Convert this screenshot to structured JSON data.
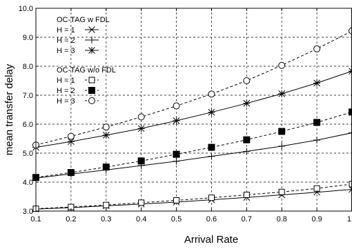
{
  "chart_data": {
    "type": "line",
    "xlabel": "Arrival Rate",
    "ylabel": "mean transfer delay",
    "xlim": [
      0.1,
      1
    ],
    "ylim": [
      3.0,
      10.0
    ],
    "x_ticks": [
      "0.1",
      "0.2",
      "0.3",
      "0.4",
      "0.5",
      "0.6",
      "0.7",
      "0.8",
      "0.9",
      "1"
    ],
    "y_ticks": [
      "3.0",
      "4.0",
      "5.0",
      "6.0",
      "7.0",
      "8.0",
      "9.0",
      "10.0"
    ],
    "grid": true,
    "legend_placement": "top-left",
    "x": [
      0.1,
      0.2,
      0.3,
      0.4,
      0.5,
      0.6,
      0.7,
      0.8,
      0.9,
      1.0
    ],
    "legend_groups": [
      {
        "title": "OC-TAG w FDL",
        "series": [
          {
            "name": "H = 1",
            "marker": "x",
            "dash": false,
            "values": [
              3.07,
              3.12,
              3.18,
              3.24,
              3.31,
              3.39,
              3.47,
              3.56,
              3.65,
              3.75
            ]
          },
          {
            "name": "H = 2",
            "marker": "plus",
            "dash": false,
            "values": [
              4.14,
              4.28,
              4.42,
              4.57,
              4.72,
              4.89,
              5.06,
              5.24,
              5.45,
              5.7
            ]
          },
          {
            "name": "H = 3",
            "marker": "star",
            "dash": false,
            "values": [
              5.2,
              5.4,
              5.62,
              5.85,
              6.12,
              6.41,
              6.72,
              7.05,
              7.42,
              7.83
            ]
          }
        ]
      },
      {
        "title": "OC-TAG w/o FDL",
        "series": [
          {
            "name": "H = 1",
            "marker": "open-square",
            "dash": true,
            "values": [
              3.08,
              3.14,
              3.21,
              3.29,
              3.37,
              3.46,
              3.56,
              3.66,
              3.78,
              3.93
            ]
          },
          {
            "name": "H = 2",
            "marker": "filled-square",
            "dash": true,
            "values": [
              4.16,
              4.33,
              4.52,
              4.73,
              4.96,
              5.2,
              5.46,
              5.75,
              6.06,
              6.42
            ]
          },
          {
            "name": "H = 3",
            "marker": "open-circle",
            "dash": true,
            "values": [
              5.28,
              5.58,
              5.9,
              6.25,
              6.63,
              7.04,
              7.5,
              8.03,
              8.6,
              9.22
            ]
          }
        ]
      }
    ]
  }
}
